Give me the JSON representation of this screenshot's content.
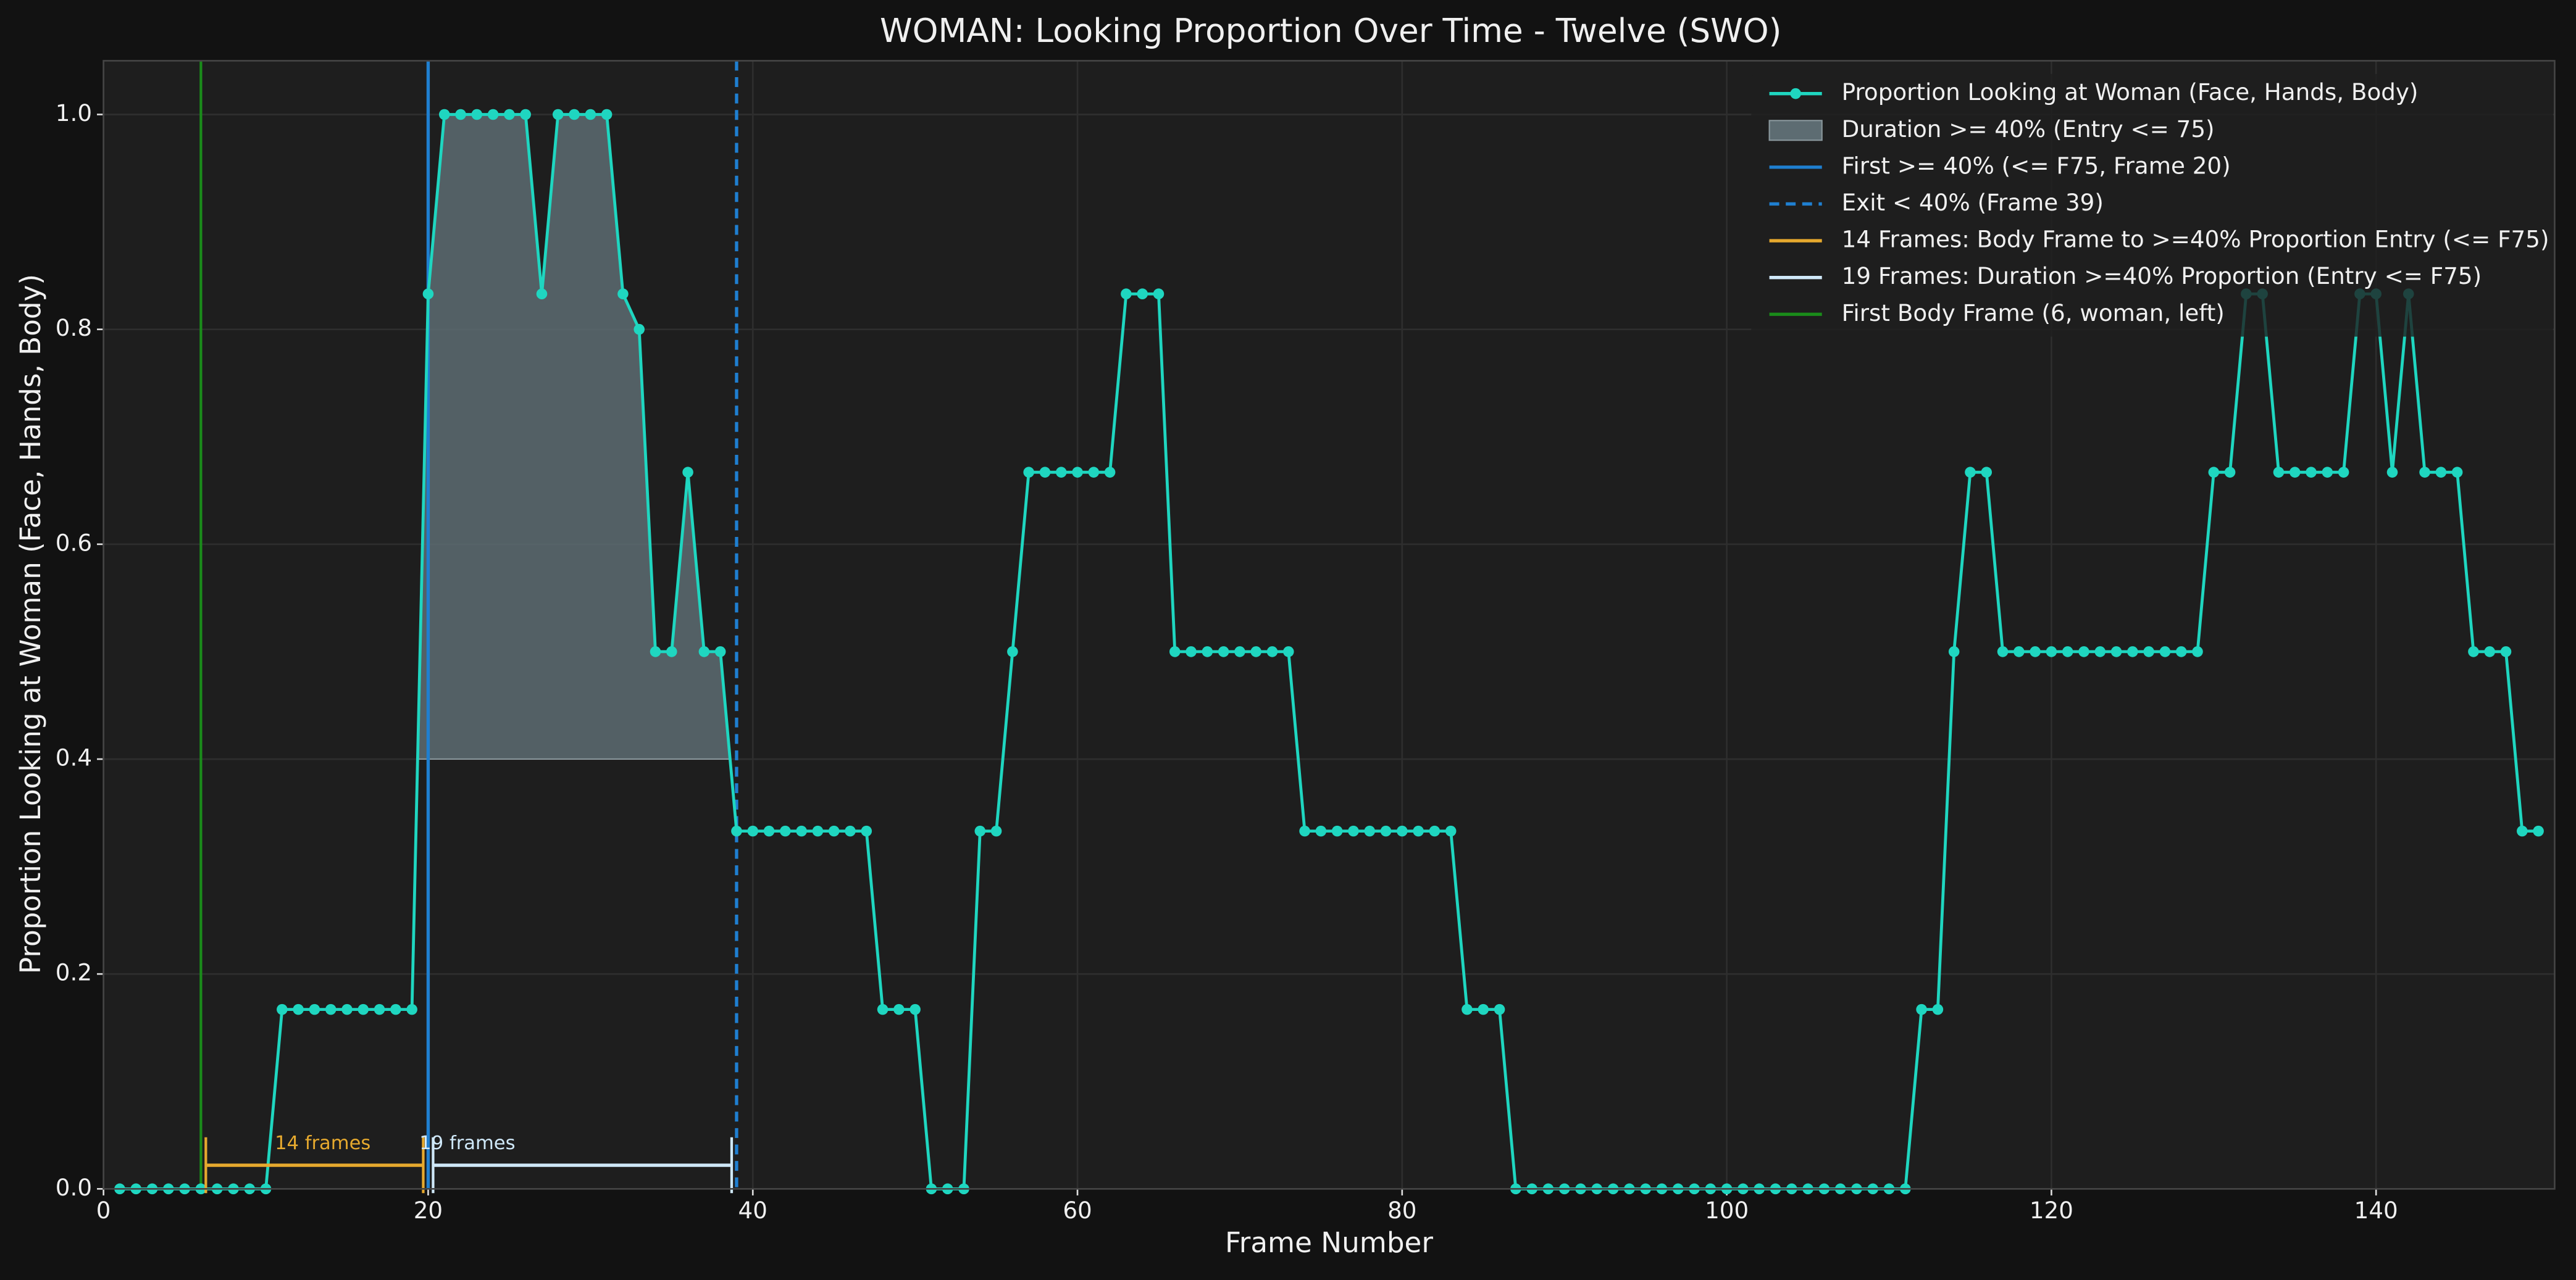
{
  "chart_data": {
    "type": "line",
    "title": "WOMAN: Looking Proportion Over Time - Twelve (SWO)",
    "xlabel": "Frame Number",
    "ylabel": "Proportion Looking at Woman (Face, Hands, Body)",
    "x": [
      1,
      2,
      3,
      4,
      5,
      6,
      7,
      8,
      9,
      10,
      11,
      12,
      13,
      14,
      15,
      16,
      17,
      18,
      19,
      20,
      21,
      22,
      23,
      24,
      25,
      26,
      27,
      28,
      29,
      30,
      31,
      32,
      33,
      34,
      35,
      36,
      37,
      38,
      39,
      40,
      41,
      42,
      43,
      44,
      45,
      46,
      47,
      48,
      49,
      50,
      51,
      52,
      53,
      54,
      55,
      56,
      57,
      58,
      59,
      60,
      61,
      62,
      63,
      64,
      65,
      66,
      67,
      68,
      69,
      70,
      71,
      72,
      73,
      74,
      75,
      76,
      77,
      78,
      79,
      80,
      81,
      82,
      83,
      84,
      85,
      86,
      87,
      88,
      89,
      90,
      91,
      92,
      93,
      94,
      95,
      96,
      97,
      98,
      99,
      100,
      101,
      102,
      103,
      104,
      105,
      106,
      107,
      108,
      109,
      110,
      111,
      112,
      113,
      114,
      115,
      116,
      117,
      118,
      119,
      120,
      121,
      122,
      123,
      124,
      125,
      126,
      127,
      128,
      129,
      130,
      131,
      132,
      133,
      134,
      135,
      136,
      137,
      138,
      139,
      140,
      141,
      142,
      143,
      144,
      145,
      146,
      147,
      148,
      149,
      150
    ],
    "series": [
      {
        "name": "Proportion Looking at Woman (Face, Hands, Body)",
        "color": "#1fd6c0",
        "values": [
          0,
          0,
          0,
          0,
          0,
          0,
          0,
          0,
          0,
          0,
          0.167,
          0.167,
          0.167,
          0.167,
          0.167,
          0.167,
          0.167,
          0.167,
          0.167,
          0.833,
          1,
          1,
          1,
          1,
          1,
          1,
          0.833,
          1,
          1,
          1,
          1,
          0.833,
          0.8,
          0.5,
          0.5,
          0.667,
          0.5,
          0.5,
          0.333,
          0.333,
          0.333,
          0.333,
          0.333,
          0.333,
          0.333,
          0.333,
          0.333,
          0.167,
          0.167,
          0.167,
          0,
          0,
          0,
          0.333,
          0.333,
          0.5,
          0.667,
          0.667,
          0.667,
          0.667,
          0.667,
          0.667,
          0.833,
          0.833,
          0.833,
          0.5,
          0.5,
          0.5,
          0.5,
          0.5,
          0.5,
          0.5,
          0.5,
          0.333,
          0.333,
          0.333,
          0.333,
          0.333,
          0.333,
          0.333,
          0.333,
          0.333,
          0.333,
          0.167,
          0.167,
          0.167,
          0,
          0,
          0,
          0,
          0,
          0,
          0,
          0,
          0,
          0,
          0,
          0,
          0,
          0,
          0,
          0,
          0,
          0,
          0,
          0,
          0,
          0,
          0,
          0,
          0,
          0.167,
          0.167,
          0.5,
          0.667,
          0.667,
          0.5,
          0.5,
          0.5,
          0.5,
          0.5,
          0.5,
          0.5,
          0.5,
          0.5,
          0.5,
          0.5,
          0.5,
          0.5,
          0.667,
          0.667,
          0.833,
          0.833,
          0.667,
          0.667,
          0.667,
          0.667,
          0.667,
          0.833,
          0.833,
          0.667,
          0.833,
          0.667,
          0.667,
          0.667,
          0.5,
          0.5,
          0.5,
          0.333,
          0.333
        ]
      }
    ],
    "fill": {
      "name": "Duration >= 40% (Entry <= 75)",
      "color": "#5d6c72",
      "x_range": [
        20,
        39
      ],
      "threshold": 0.4
    },
    "vlines": [
      {
        "name": "First >= 40% (<= F75, Frame 20)",
        "x": 20,
        "color": "#1f7fd0",
        "dashed": false
      },
      {
        "name": "Exit < 40% (Frame 39)",
        "x": 39,
        "color": "#1f7fd0",
        "dashed": true
      }
    ],
    "brackets": [
      {
        "name": "14 Frames: Body Frame to >=40% Proportion Entry (<= F75)",
        "label": "14 frames",
        "x": [
          6,
          20
        ],
        "y": 0.022,
        "color": "#e6a92e"
      },
      {
        "name": "19 Frames: Duration >=40% Proportion (Entry <= F75)",
        "label": "19 frames",
        "x": [
          20,
          39
        ],
        "y": 0.022,
        "color": "#cfe8f8"
      }
    ],
    "first_body": {
      "name": "First Body Frame (6, woman, left)",
      "x": 6,
      "color": "#1a8c1a"
    },
    "xlim": [
      0,
      151
    ],
    "ylim": [
      0,
      1.05
    ],
    "xticks": [
      0,
      20,
      40,
      60,
      80,
      100,
      120,
      140
    ],
    "yticks": [
      {
        "value": 0,
        "label": "0.0"
      },
      0.2,
      0.4,
      0.6,
      0.8,
      {
        "value": 1,
        "label": "1.0"
      }
    ],
    "grid": true
  }
}
